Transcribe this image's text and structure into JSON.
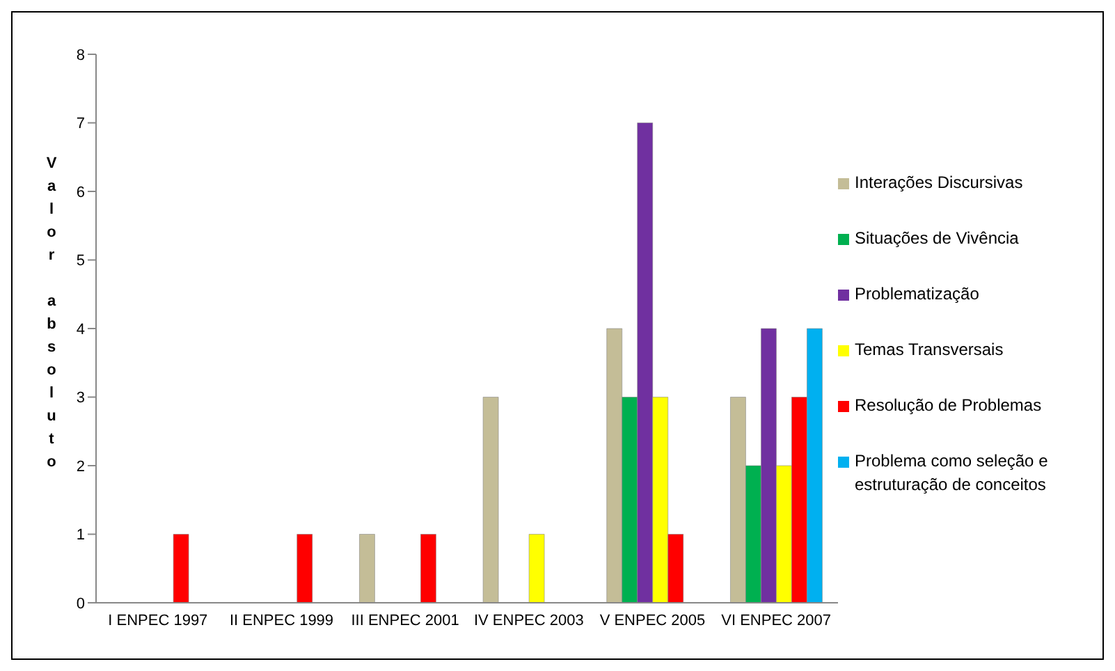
{
  "chart_data": {
    "type": "bar",
    "ylabel": "Valor absoluto",
    "categories": [
      "I ENPEC 1997",
      "II ENPEC 1999",
      "III ENPEC 2001",
      "IV ENPEC 2003",
      "V ENPEC 2005",
      "VI ENPEC 2007"
    ],
    "series": [
      {
        "name": "Interações Discursivas",
        "color": "#c4bd97",
        "values": [
          0,
          0,
          1,
          3,
          4,
          3
        ]
      },
      {
        "name": "Situações de Vivência",
        "color": "#00b050",
        "values": [
          0,
          0,
          0,
          0,
          3,
          2
        ]
      },
      {
        "name": "Problematização",
        "color": "#7030a0",
        "values": [
          0,
          0,
          0,
          0,
          7,
          4
        ]
      },
      {
        "name": "Temas Transversais",
        "color": "#ffff00",
        "values": [
          0,
          0,
          0,
          1,
          3,
          2
        ]
      },
      {
        "name": "Resolução de Problemas",
        "color": "#ff0000",
        "values": [
          1,
          1,
          1,
          0,
          1,
          3
        ]
      },
      {
        "name": "Problema como seleção e estruturação de conceitos",
        "color": "#00b0f0",
        "values": [
          0,
          0,
          0,
          0,
          0,
          4
        ]
      }
    ],
    "ylim": [
      0,
      8
    ],
    "yticks": [
      0,
      1,
      2,
      3,
      4,
      5,
      6,
      7,
      8
    ],
    "grid": false,
    "legend": "right"
  }
}
